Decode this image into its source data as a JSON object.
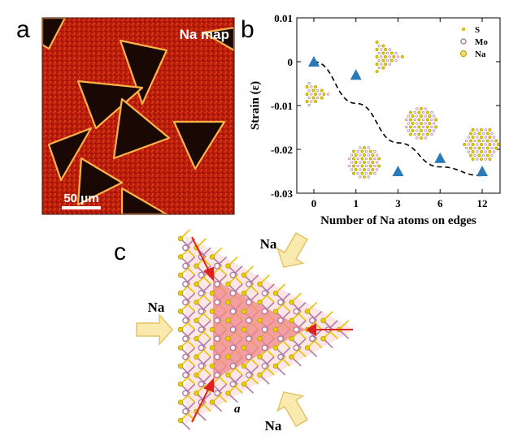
{
  "panels": {
    "a": {
      "letter": "a",
      "map_label": "Na map",
      "scale_bar_label": "50 μm"
    },
    "b": {
      "letter": "b",
      "legend": [
        {
          "name": "S",
          "color": "#e8d000"
        },
        {
          "name": "Mo",
          "color": "#b07aa6"
        },
        {
          "name": "Na",
          "color": "#d9b22a"
        }
      ]
    },
    "c": {
      "letter": "c",
      "na_labels": [
        "Na",
        "Na",
        "Na"
      ],
      "lattice_symbol": "a"
    }
  },
  "colors": {
    "map_background": "#b81a0a",
    "map_edge": "#ffb24a",
    "marker": "#2a7ab8",
    "sulfur": "#e8d000",
    "molybdenum": "#b07aa6",
    "arrow_fill": "#fbeab0",
    "arrow_stroke": "#e3c364",
    "triangle_fill": "#f08a8a",
    "red_arrow": "#e0201a"
  },
  "chart_data": {
    "type": "scatter",
    "xlabel": "Number of Na atoms on edges",
    "ylabel": "Strain (ε)",
    "categories": [
      "0",
      "1",
      "3",
      "6",
      "12"
    ],
    "y_ticks": [
      "0.01",
      "0",
      "-0.01",
      "-0.02",
      "-0.03"
    ],
    "ylim": [
      -0.03,
      0.01
    ],
    "series": [
      {
        "values": [
          0.0,
          -0.003,
          -0.025,
          -0.022,
          -0.025
        ],
        "marker": "triangle"
      }
    ],
    "trend_line": {
      "style": "dashed",
      "values": [
        0.0,
        -0.0095,
        -0.0185,
        -0.024,
        -0.026
      ]
    }
  }
}
